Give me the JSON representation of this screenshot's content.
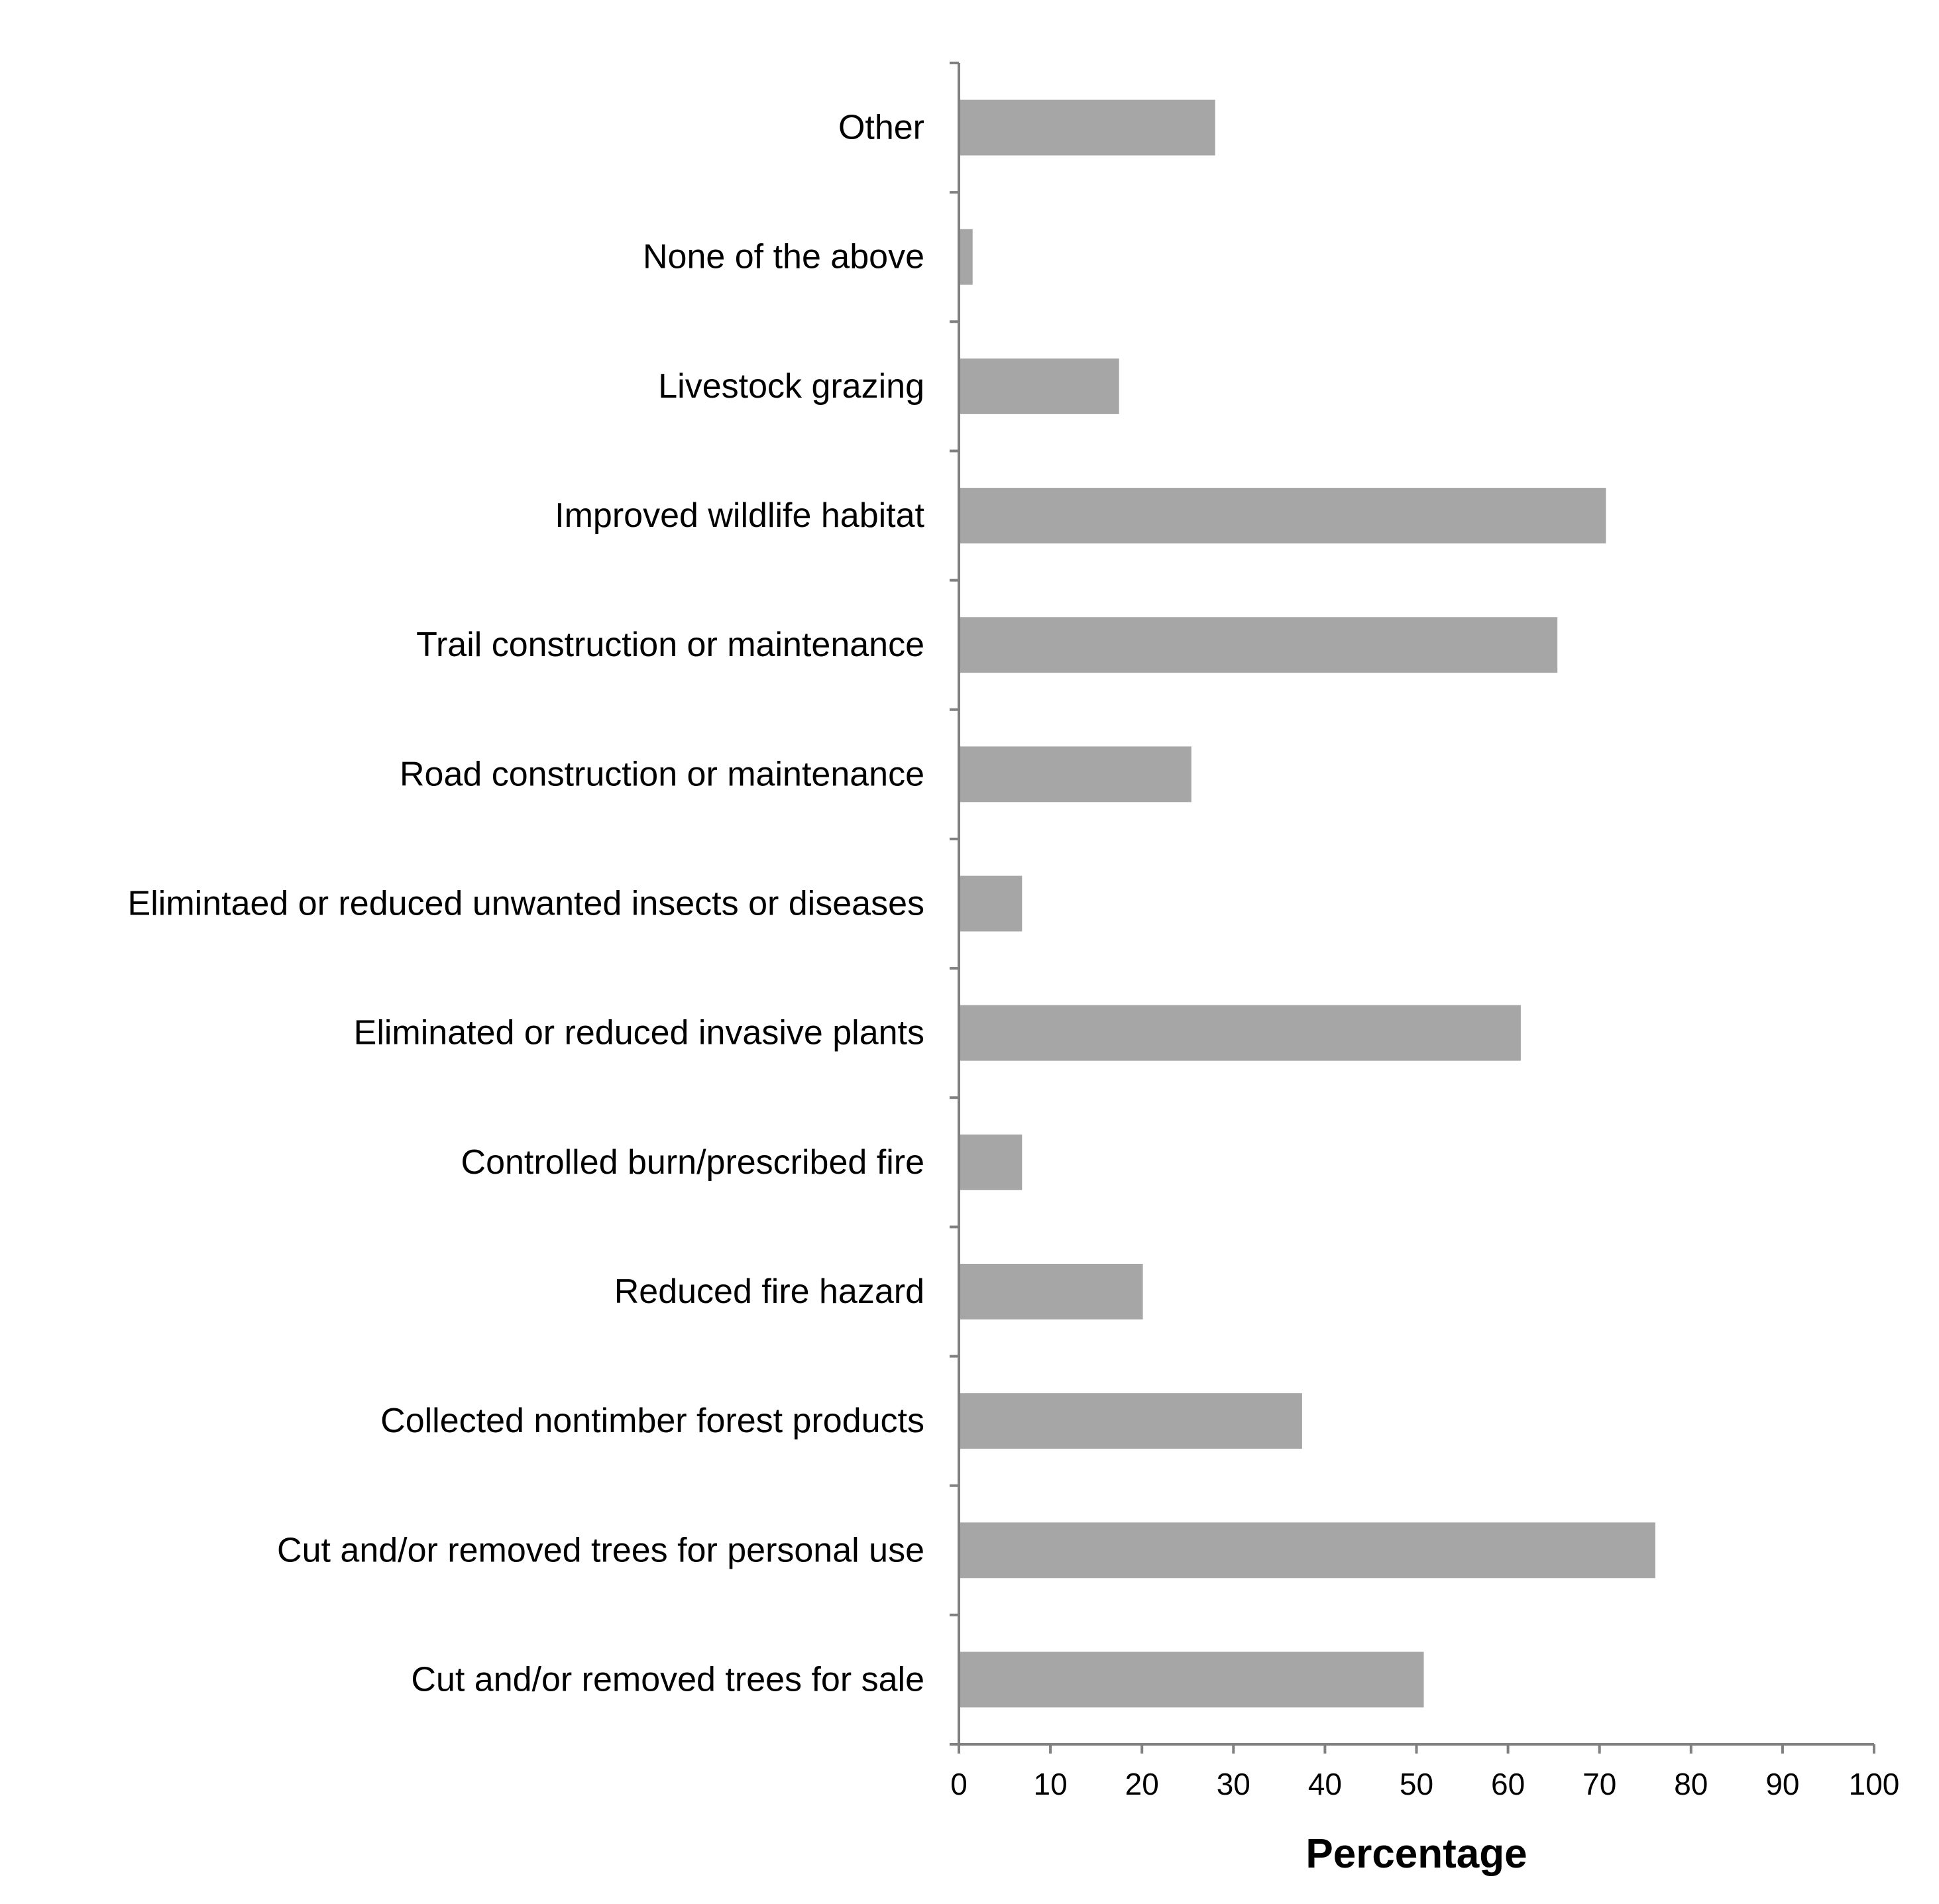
{
  "chart_data": {
    "type": "bar",
    "orientation": "horizontal",
    "title": "",
    "xlabel": "Percentage",
    "ylabel": "",
    "xlim": [
      0,
      100
    ],
    "xticks": [
      "0",
      "10",
      "20",
      "30",
      "40",
      "50",
      "60",
      "70",
      "80",
      "90",
      "100"
    ],
    "grid": false,
    "legend": null,
    "bar_color": "#a6a6a6",
    "axis_color": "#808080",
    "categories": [
      "Other",
      "None of the above",
      "Livestock grazing",
      "Improved wildlife habitat",
      "Trail construction or maintenance",
      "Road construction or maintenance",
      "Elimintaed or reduced unwanted insects or diseases",
      "Eliminated or reduced invasive plants",
      "Controlled burn/prescribed fire",
      "Reduced fire hazard",
      "Collected nontimber forest products",
      "Cut and/or removed trees for personal use",
      "Cut and/or removed trees for sale"
    ],
    "values": [
      28,
      1.5,
      17.5,
      70.7,
      65.4,
      25.4,
      6.9,
      61.4,
      6.9,
      20.1,
      37.5,
      76.1,
      50.8
    ]
  }
}
